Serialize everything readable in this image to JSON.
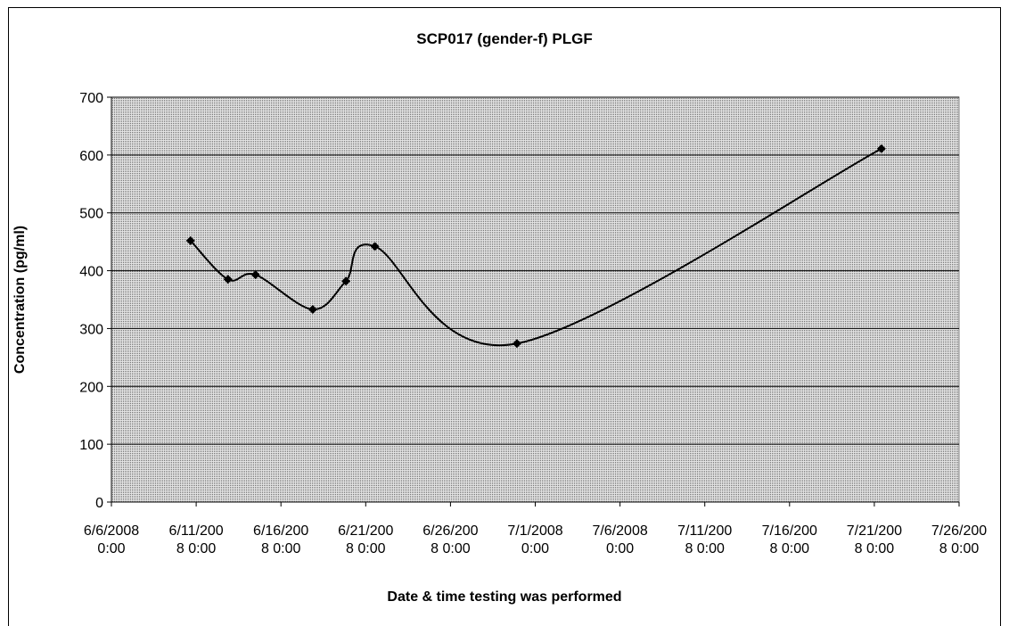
{
  "chart_data": {
    "type": "line",
    "title": "SCP017 (gender-f) PLGF",
    "x_label": "Date & time testing was performed",
    "y_label": "Concentration (pg/ml)",
    "x": [
      "2008-06-10T16:00",
      "2008-06-12T21:00",
      "2008-06-14T12:00",
      "2008-06-17T21:00",
      "2008-06-19T20:00",
      "2008-06-21T13:00",
      "2008-06-29T22:00",
      "2008-07-21T10:00"
    ],
    "series": [
      {
        "name": "PLGF",
        "color": "#000000",
        "values": [
          452,
          385,
          393,
          333,
          382,
          442,
          274,
          611
        ]
      }
    ],
    "xlim": [
      "2008-06-06T00:00",
      "2008-07-26T00:00"
    ],
    "xticks": [
      {
        "value": "2008-06-06T00:00",
        "label": "6/6/2008 0:00"
      },
      {
        "value": "2008-06-11T00:00",
        "label": "6/11/2008 0:00"
      },
      {
        "value": "2008-06-16T00:00",
        "label": "6/16/2008 0:00"
      },
      {
        "value": "2008-06-21T00:00",
        "label": "6/21/2008 0:00"
      },
      {
        "value": "2008-06-26T00:00",
        "label": "6/26/2008 0:00"
      },
      {
        "value": "2008-07-01T00:00",
        "label": "7/1/2008 0:00"
      },
      {
        "value": "2008-07-06T00:00",
        "label": "7/6/2008 0:00"
      },
      {
        "value": "2008-07-11T00:00",
        "label": "7/11/2008 0:00"
      },
      {
        "value": "2008-07-16T00:00",
        "label": "7/16/2008 0:00"
      },
      {
        "value": "2008-07-21T00:00",
        "label": "7/21/2008 0:00"
      },
      {
        "value": "2008-07-26T00:00",
        "label": "7/26/2008 0:00"
      }
    ],
    "ylim": [
      0,
      700
    ],
    "yticks": [
      0,
      100,
      200,
      300,
      400,
      500,
      600,
      700
    ],
    "grid": true,
    "smooth": true
  }
}
